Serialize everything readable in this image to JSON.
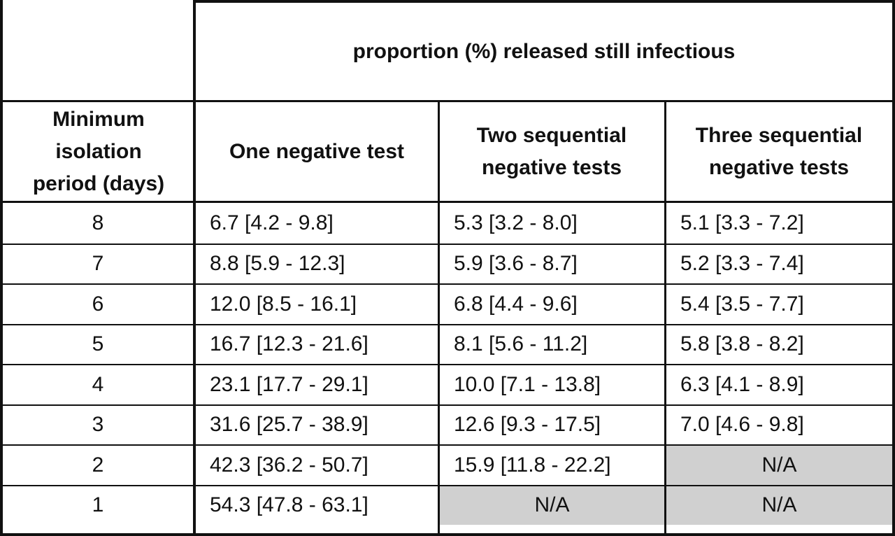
{
  "header": {
    "group_title": "proportion (%) released still infectious",
    "first_col": "Minimum isolation period (days)",
    "cols": [
      "One negative test",
      "Two sequential negative tests",
      "Three sequential negative tests"
    ]
  },
  "rows": [
    {
      "days": "8",
      "one": "6.7 [4.2 - 9.8]",
      "two": "5.3 [3.2 - 8.0]",
      "three": "5.1 [3.3 - 7.2]"
    },
    {
      "days": "7",
      "one": "8.8 [5.9 - 12.3]",
      "two": "5.9 [3.6 - 8.7]",
      "three": "5.2 [3.3 - 7.4]"
    },
    {
      "days": "6",
      "one": "12.0 [8.5 - 16.1]",
      "two": "6.8 [4.4 - 9.6]",
      "three": "5.4 [3.5 - 7.7]"
    },
    {
      "days": "5",
      "one": "16.7 [12.3 - 21.6]",
      "two": "8.1 [5.6 - 11.2]",
      "three": "5.8 [3.8 - 8.2]"
    },
    {
      "days": "4",
      "one": "23.1 [17.7 - 29.1]",
      "two": "10.0 [7.1 - 13.8]",
      "three": "6.3 [4.1 - 8.9]"
    },
    {
      "days": "3",
      "one": "31.6 [25.7 - 38.9]",
      "two": "12.6 [9.3 - 17.5]",
      "three": "7.0 [4.6 - 9.8]"
    },
    {
      "days": "2",
      "one": "42.3 [36.2 - 50.7]",
      "two": "15.9 [11.8 - 22.2]",
      "three": "N/A"
    },
    {
      "days": "1",
      "one": "54.3 [47.8 - 63.1]",
      "two": "N/A",
      "three": "N/A"
    }
  ]
}
